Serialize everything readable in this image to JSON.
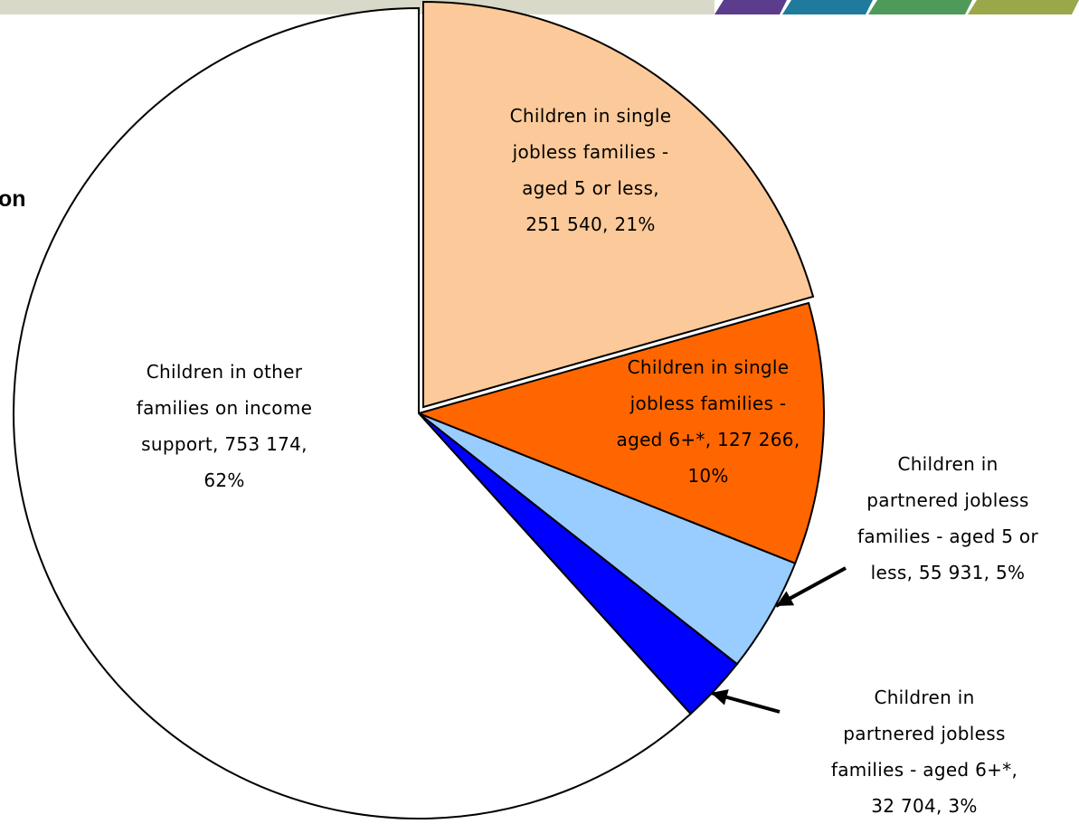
{
  "page": {
    "truncated_heading": "on",
    "banner_colors": [
      "#d9d9c9",
      "#5c3c8c",
      "#1f7a9c",
      "#4f9a5a",
      "#9aa84a"
    ]
  },
  "chart_data": {
    "type": "pie",
    "title": "",
    "start_angle_deg": 0,
    "direction": "clockwise",
    "slices": [
      {
        "label_lines": [
          "Children in single",
          "jobless families -",
          "aged 5 or less,",
          "251 540, 21%"
        ],
        "value": 251540,
        "percent": 21,
        "color": "#fcca9a",
        "exploded": true
      },
      {
        "label_lines": [
          "Children in single",
          "jobless families  -",
          "aged 6+*, 127 266,",
          "10%"
        ],
        "value": 127266,
        "percent": 10,
        "color": "#ff6600",
        "exploded": false
      },
      {
        "label_lines": [
          "Children in",
          "partnered jobless",
          "families - aged 5 or",
          "less,  55 931, 5%"
        ],
        "value": 55931,
        "percent": 5,
        "color": "#99ccff",
        "exploded": false
      },
      {
        "label_lines": [
          "Children in",
          "partnered jobless",
          "families  - aged 6+*,",
          "32 704, 3%"
        ],
        "value": 32704,
        "percent": 3,
        "color": "#0000ff",
        "exploded": false
      },
      {
        "label_lines": [
          "Children in other",
          "families on income",
          "support, 753 174,",
          "62%"
        ],
        "value": 753174,
        "percent": 62,
        "color": "#ffffff",
        "exploded": false
      }
    ]
  }
}
